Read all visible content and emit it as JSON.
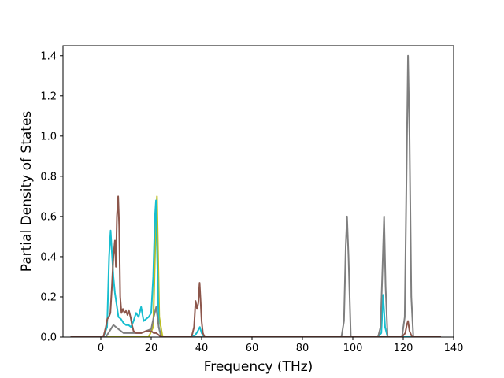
{
  "chart_data": {
    "type": "line",
    "title": "",
    "xlabel": "Frequency (THz)",
    "ylabel": "Partial Density of States",
    "xlim": [
      -15,
      140
    ],
    "ylim": [
      0,
      1.45
    ],
    "xticks": [
      0,
      20,
      40,
      60,
      80,
      100,
      120,
      140
    ],
    "yticks": [
      0.0,
      0.2,
      0.4,
      0.6,
      0.8,
      1.0,
      1.2,
      1.4
    ],
    "xtick_labels": [
      "0",
      "20",
      "40",
      "60",
      "80",
      "100",
      "120",
      "140"
    ],
    "ytick_labels": [
      "0.0",
      "0.2",
      "0.4",
      "0.6",
      "0.8",
      "1.0",
      "1.2",
      "1.4"
    ],
    "grid": false,
    "legend": "none",
    "series": [
      {
        "color": "#bcbd22",
        "x": [
          -12,
          19,
          20.8,
          21.6,
          22.3,
          23.2,
          24.5,
          135
        ],
        "y": [
          0,
          0,
          0.05,
          0.45,
          0.7,
          0.1,
          0,
          0
        ]
      },
      {
        "color": "#17becf",
        "x": [
          -12,
          1,
          2.5,
          3.3,
          3.9,
          4.4,
          5.0,
          5.6,
          6.3,
          7.0,
          8.0,
          9.0,
          10.0,
          11.0,
          12.0,
          13.0,
          14.0,
          15.0,
          16.0,
          17.0,
          18.0,
          19.0,
          20.0,
          20.8,
          21.5,
          21.9,
          22.3,
          23.0,
          24.0,
          36,
          37.5,
          38.5,
          39.3,
          40.0,
          41.0,
          110,
          111.3,
          112.0,
          112.8,
          113.8,
          135
        ],
        "y": [
          0,
          0,
          0.05,
          0.4,
          0.53,
          0.42,
          0.3,
          0.22,
          0.16,
          0.1,
          0.09,
          0.07,
          0.06,
          0.06,
          0.05,
          0.08,
          0.12,
          0.1,
          0.15,
          0.08,
          0.09,
          0.1,
          0.12,
          0.3,
          0.6,
          0.68,
          0.45,
          0.05,
          0,
          0,
          0.01,
          0.03,
          0.05,
          0.02,
          0,
          0,
          0.02,
          0.21,
          0.05,
          0,
          0
        ]
      },
      {
        "color": "#7f7f7f",
        "x": [
          -12,
          2,
          3,
          4,
          5,
          6,
          7,
          8,
          9,
          10,
          12,
          14,
          16,
          18,
          20,
          21,
          22,
          23,
          24,
          95.5,
          96.5,
          97.2,
          97.7,
          98.3,
          99.2,
          110,
          111.0,
          111.8,
          112.4,
          113.0,
          113.8,
          119.5,
          120.6,
          121.3,
          121.9,
          122.5,
          123.2,
          124.0,
          135
        ],
        "y": [
          0,
          0,
          0.02,
          0.04,
          0.06,
          0.05,
          0.04,
          0.03,
          0.02,
          0.02,
          0.02,
          0.02,
          0.02,
          0.03,
          0.04,
          0.1,
          0.15,
          0.05,
          0,
          0,
          0.08,
          0.45,
          0.6,
          0.4,
          0,
          0,
          0.05,
          0.35,
          0.6,
          0.25,
          0,
          0,
          0.1,
          0.8,
          1.4,
          1.0,
          0.2,
          0,
          0
        ]
      },
      {
        "color": "#8c564b",
        "x": [
          -12,
          1,
          2.0,
          2.6,
          3.2,
          3.8,
          4.4,
          5.0,
          5.6,
          6.0,
          6.4,
          6.9,
          7.3,
          7.7,
          8.2,
          8.8,
          9.4,
          10.0,
          10.6,
          11.2,
          11.8,
          12.4,
          13.0,
          14.0,
          16.0,
          18.0,
          20.0,
          21.0,
          22.0,
          23.0,
          24.0,
          36.0,
          37.0,
          37.6,
          38.2,
          38.7,
          39.2,
          39.6,
          40.0,
          40.5,
          41.2,
          119.5,
          120.8,
          121.4,
          121.9,
          122.5,
          123.5,
          135
        ],
        "y": [
          0,
          0,
          0.05,
          0.09,
          0.1,
          0.12,
          0.25,
          0.4,
          0.48,
          0.35,
          0.6,
          0.7,
          0.55,
          0.2,
          0.12,
          0.14,
          0.12,
          0.13,
          0.11,
          0.13,
          0.1,
          0.06,
          0.03,
          0.02,
          0.02,
          0.03,
          0.03,
          0.02,
          0.02,
          0.01,
          0,
          0,
          0.05,
          0.18,
          0.14,
          0.17,
          0.27,
          0.18,
          0.08,
          0.02,
          0,
          0,
          0.02,
          0.06,
          0.08,
          0.03,
          0,
          0
        ]
      }
    ]
  }
}
